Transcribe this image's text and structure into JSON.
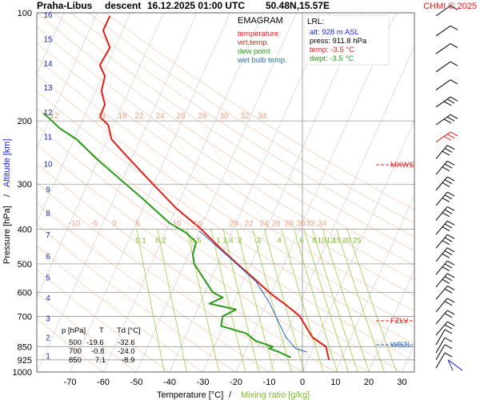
{
  "header": {
    "station": "Praha-Libus",
    "mode": "descent",
    "datetime": "16.12.2025 01:00 UTC",
    "coords": "50.48N,15.57E",
    "copyright": "CHMI © 2025"
  },
  "legend": {
    "title": "EMAGRAM",
    "items": [
      {
        "label": "temperature",
        "color": "#e0201a"
      },
      {
        "label": "virt.temp.",
        "color": "#e0201a"
      },
      {
        "label": "dew point",
        "color": "#2a9a1a"
      },
      {
        "label": "wet bulb temp.",
        "color": "#2a66c8"
      }
    ]
  },
  "lrl": {
    "title": "LRL:",
    "alt": "alt: 928 m ASL",
    "press": "press: 911.8 hPa",
    "temp": "temp: -3.5 °C",
    "dwpt": "dwpt: -3.5 °C"
  },
  "levels": [
    {
      "label": "MXWS",
      "p": 265
    },
    {
      "label": "FZLV",
      "p": 720
    },
    {
      "label": "WBZL",
      "p": 840
    }
  ],
  "table": {
    "headers": [
      "p [hPa]",
      "T",
      "Td [°C]"
    ],
    "rows": [
      [
        "500",
        "-19.6",
        "-32.6"
      ],
      [
        "700",
        "-0.8",
        "-24.0"
      ],
      [
        "850",
        "7.1",
        "-8.9"
      ]
    ]
  },
  "axes": {
    "xlabel_temp": "Temperature [°C]",
    "xlabel_sep": "/",
    "xlabel_mix": "Mixing ratio [g/kg]",
    "ylabel_p": "Pressure [hPa]",
    "ylabel_sep": "/",
    "ylabel_alt": "Altitude [km]"
  },
  "colors": {
    "temperature": "#e0201a",
    "dewpoint": "#2a9a1a",
    "wetbulb": "#2a66c8",
    "altitude": "#1a2acc",
    "mixing": "#9ad040",
    "dry_adiabat": "#f3c8b0",
    "isotherm": "#c8c8c8",
    "axis_label_altitude": "#1a2acc",
    "axis_label_mixing": "#7ac020"
  },
  "chart_data": {
    "type": "line",
    "x_axis": {
      "label": "Temperature [°C]",
      "ticks": [
        -70,
        -60,
        -50,
        -40,
        -30,
        -20,
        -10,
        0,
        10,
        20,
        30
      ],
      "range": [
        -80,
        33
      ]
    },
    "y_axis": {
      "label": "Pressure [hPa]",
      "scale": "log",
      "ticks": [
        100,
        200,
        300,
        400,
        500,
        600,
        700,
        850,
        925,
        1000
      ],
      "range": [
        100,
        1000
      ]
    },
    "altitude_ticks": [
      {
        "km": 16,
        "p": 101
      },
      {
        "km": 15,
        "p": 118
      },
      {
        "km": 14,
        "p": 138
      },
      {
        "km": 13,
        "p": 161
      },
      {
        "km": 12,
        "p": 189
      },
      {
        "km": 11,
        "p": 221
      },
      {
        "km": 10,
        "p": 263
      },
      {
        "km": 9,
        "p": 310
      },
      {
        "km": 8,
        "p": 360
      },
      {
        "km": 7,
        "p": 414
      },
      {
        "km": 6,
        "p": 476
      },
      {
        "km": 5,
        "p": 545
      },
      {
        "km": 4,
        "p": 620
      },
      {
        "km": 3,
        "p": 707
      },
      {
        "km": 2,
        "p": 800
      },
      {
        "km": 1,
        "p": 900
      }
    ],
    "dry_adiabat_labels_200": [
      "12",
      "14",
      "18",
      "22",
      "24",
      "26",
      "28",
      "30",
      "32",
      "34"
    ],
    "dry_adiabat_labels_400": [
      "-10",
      "-5",
      "0",
      "5",
      "10",
      "16",
      "20",
      "22",
      "24",
      "26",
      "28",
      "30",
      "32",
      "34"
    ],
    "mixing_ratio_labels": [
      "0.1",
      "0.2",
      "0.5",
      "1",
      "1.4",
      "2",
      "3",
      "4",
      "6",
      "8",
      "10",
      "12",
      "15",
      "20",
      "25"
    ],
    "mixing_ratio_values": [
      0.1,
      0.2,
      0.5,
      1,
      1.4,
      2,
      3,
      4,
      6,
      8,
      10,
      12,
      15,
      20,
      25
    ],
    "series": [
      {
        "name": "temperature",
        "points": [
          [
            8,
            925
          ],
          [
            7.1,
            850
          ],
          [
            3,
            800
          ],
          [
            -0.8,
            700
          ],
          [
            -5,
            650
          ],
          [
            -10,
            600
          ],
          [
            -14.5,
            550
          ],
          [
            -19.6,
            500
          ],
          [
            -25,
            450
          ],
          [
            -30.5,
            400
          ],
          [
            -38,
            350
          ],
          [
            -45,
            300
          ],
          [
            -53,
            250
          ],
          [
            -57.5,
            225
          ],
          [
            -58.5,
            205
          ],
          [
            -61,
            195
          ],
          [
            -59.5,
            180
          ],
          [
            -60.5,
            165
          ],
          [
            -59.5,
            150
          ],
          [
            -61,
            140
          ],
          [
            -58,
            125
          ],
          [
            -60,
            112
          ],
          [
            -58,
            102
          ]
        ]
      },
      {
        "name": "dew point",
        "points": [
          [
            -3.5,
            911
          ],
          [
            -7,
            880
          ],
          [
            -10,
            860
          ],
          [
            -8.9,
            850
          ],
          [
            -14,
            820
          ],
          [
            -17,
            780
          ],
          [
            -24.5,
            745
          ],
          [
            -24.0,
            700
          ],
          [
            -20,
            670
          ],
          [
            -28,
            645
          ],
          [
            -24,
            620
          ],
          [
            -27,
            600
          ],
          [
            -32.6,
            500
          ],
          [
            -33,
            470
          ],
          [
            -32,
            435
          ],
          [
            -35,
            410
          ],
          [
            -40,
            385
          ],
          [
            -48,
            330
          ],
          [
            -55,
            290
          ],
          [
            -62,
            255
          ],
          [
            -68,
            225
          ],
          [
            -73,
            210
          ],
          [
            -78,
            190
          ]
        ]
      },
      {
        "name": "wet bulb temp.",
        "points": [
          [
            1.5,
            880
          ],
          [
            -2,
            860
          ],
          [
            -5,
            800
          ],
          [
            -8,
            700
          ],
          [
            -10,
            640
          ],
          [
            -14,
            560
          ],
          [
            -22,
            480
          ],
          [
            -31,
            405
          ]
        ]
      }
    ]
  }
}
